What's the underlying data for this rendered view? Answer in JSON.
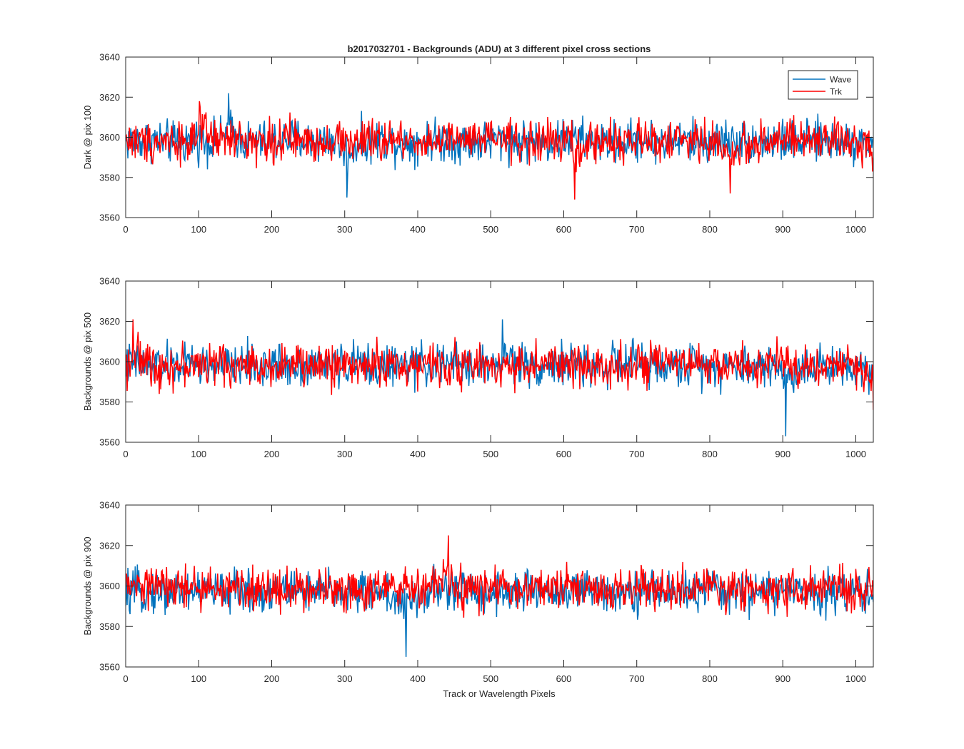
{
  "figure": {
    "title": "b2017032701 - Backgrounds (ADU) at 3 different pixel cross sections",
    "xlabel": "Track or Wavelength Pixels"
  },
  "legend": {
    "position": "top-right",
    "items": [
      {
        "label": "Wave",
        "color": "#0072BD"
      },
      {
        "label": "Trk",
        "color": "#FF0000"
      }
    ]
  },
  "chart_data": [
    {
      "type": "line",
      "ylabel": "Dark @ pix 100",
      "xlim": [
        0,
        1024
      ],
      "ylim": [
        3560,
        3640
      ],
      "xticks": [
        0,
        100,
        200,
        300,
        400,
        500,
        600,
        700,
        800,
        900,
        1000
      ],
      "yticks": [
        3560,
        3580,
        3600,
        3620,
        3640
      ],
      "series": [
        {
          "name": "Wave",
          "color": "#0072BD",
          "x": [
            0,
            32,
            64,
            96,
            128,
            141,
            160,
            192,
            224,
            256,
            288,
            303,
            320,
            352,
            384,
            416,
            448,
            480,
            512,
            544,
            576,
            608,
            640,
            672,
            704,
            736,
            768,
            800,
            832,
            864,
            896,
            928,
            960,
            992,
            1024
          ],
          "y": [
            3598,
            3602,
            3595,
            3601,
            3597,
            3622,
            3599,
            3596,
            3603,
            3598,
            3601,
            3570,
            3597,
            3600,
            3594,
            3602,
            3598,
            3596,
            3601,
            3599,
            3597,
            3603,
            3598,
            3595,
            3601,
            3597,
            3600,
            3596,
            3602,
            3598,
            3599,
            3595,
            3601,
            3598,
            3600
          ]
        },
        {
          "name": "Trk",
          "color": "#FF0000",
          "x": [
            0,
            32,
            64,
            96,
            101,
            128,
            160,
            192,
            224,
            256,
            288,
            320,
            352,
            384,
            416,
            448,
            480,
            512,
            544,
            576,
            608,
            615,
            640,
            672,
            704,
            736,
            768,
            800,
            828,
            864,
            896,
            928,
            960,
            992,
            1024
          ],
          "y": [
            3600,
            3597,
            3602,
            3596,
            3618,
            3599,
            3601,
            3597,
            3600,
            3598,
            3602,
            3596,
            3599,
            3601,
            3597,
            3600,
            3598,
            3602,
            3596,
            3599,
            3601,
            3569,
            3598,
            3600,
            3597,
            3601,
            3598,
            3600,
            3572,
            3599,
            3601,
            3597,
            3600,
            3598,
            3590
          ]
        }
      ]
    },
    {
      "type": "line",
      "ylabel": "Backgrounds @ pix 500",
      "xlim": [
        0,
        1024
      ],
      "ylim": [
        3560,
        3640
      ],
      "xticks": [
        0,
        100,
        200,
        300,
        400,
        500,
        600,
        700,
        800,
        900,
        1000
      ],
      "yticks": [
        3560,
        3580,
        3600,
        3620,
        3640
      ],
      "series": [
        {
          "name": "Wave",
          "color": "#0072BD",
          "x": [
            0,
            32,
            64,
            96,
            128,
            160,
            192,
            224,
            256,
            288,
            320,
            352,
            384,
            416,
            448,
            480,
            512,
            516,
            544,
            576,
            608,
            640,
            672,
            704,
            736,
            768,
            800,
            832,
            864,
            896,
            904,
            928,
            960,
            992,
            1024
          ],
          "y": [
            3601,
            3597,
            3599,
            3602,
            3596,
            3600,
            3598,
            3601,
            3597,
            3599,
            3602,
            3596,
            3600,
            3598,
            3601,
            3597,
            3599,
            3621,
            3600,
            3598,
            3601,
            3597,
            3600,
            3602,
            3596,
            3599,
            3601,
            3597,
            3600,
            3598,
            3563,
            3601,
            3597,
            3600,
            3590
          ]
        },
        {
          "name": "Trk",
          "color": "#FF0000",
          "x": [
            0,
            10,
            32,
            64,
            96,
            128,
            160,
            192,
            224,
            256,
            288,
            320,
            352,
            384,
            416,
            448,
            480,
            512,
            544,
            576,
            608,
            640,
            672,
            704,
            736,
            768,
            800,
            832,
            864,
            896,
            928,
            960,
            992,
            1024
          ],
          "y": [
            3598,
            3621,
            3601,
            3597,
            3600,
            3602,
            3596,
            3599,
            3601,
            3597,
            3600,
            3598,
            3601,
            3596,
            3599,
            3601,
            3597,
            3600,
            3598,
            3602,
            3596,
            3599,
            3601,
            3597,
            3600,
            3598,
            3601,
            3597,
            3599,
            3602,
            3596,
            3600,
            3598,
            3576
          ]
        }
      ]
    },
    {
      "type": "line",
      "ylabel": "Backgrounds @ pix 900",
      "xlim": [
        0,
        1024
      ],
      "ylim": [
        3560,
        3640
      ],
      "xticks": [
        0,
        100,
        200,
        300,
        400,
        500,
        600,
        700,
        800,
        900,
        1000
      ],
      "yticks": [
        3560,
        3580,
        3600,
        3620,
        3640
      ],
      "series": [
        {
          "name": "Wave",
          "color": "#0072BD",
          "x": [
            0,
            32,
            64,
            96,
            128,
            160,
            192,
            224,
            256,
            288,
            320,
            352,
            384,
            416,
            448,
            480,
            512,
            544,
            576,
            608,
            640,
            672,
            704,
            736,
            768,
            800,
            832,
            864,
            896,
            928,
            960,
            992,
            1024
          ],
          "y": [
            3590,
            3596,
            3594,
            3598,
            3595,
            3597,
            3593,
            3599,
            3594,
            3596,
            3592,
            3598,
            3565,
            3595,
            3597,
            3593,
            3598,
            3595,
            3597,
            3594,
            3596,
            3598,
            3593,
            3597,
            3595,
            3598,
            3594,
            3596,
            3597,
            3593,
            3598,
            3595,
            3592
          ]
        },
        {
          "name": "Trk",
          "color": "#FF0000",
          "x": [
            0,
            32,
            64,
            96,
            128,
            160,
            192,
            224,
            256,
            288,
            320,
            352,
            384,
            416,
            442,
            448,
            480,
            512,
            544,
            576,
            608,
            640,
            672,
            704,
            736,
            768,
            800,
            832,
            864,
            896,
            928,
            960,
            992,
            1024
          ],
          "y": [
            3600,
            3606,
            3603,
            3601,
            3599,
            3602,
            3598,
            3601,
            3600,
            3603,
            3599,
            3601,
            3598,
            3602,
            3625,
            3600,
            3598,
            3601,
            3597,
            3600,
            3602,
            3598,
            3600,
            3601,
            3597,
            3599,
            3601,
            3598,
            3600,
            3602,
            3598,
            3601,
            3599,
            3600
          ]
        }
      ]
    }
  ]
}
